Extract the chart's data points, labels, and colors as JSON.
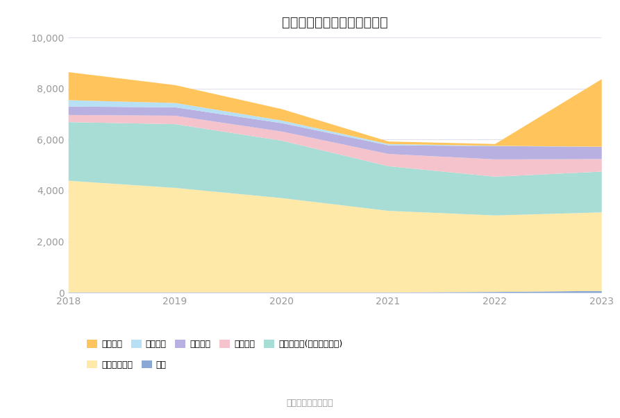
{
  "title": "历年主要负债堆积图（万元）",
  "source": "数据来源：恒生聚源",
  "years": [
    2018,
    2019,
    2020,
    2021,
    2022,
    2023
  ],
  "series": [
    {
      "name": "其它",
      "color": "#8BA7D4",
      "values": [
        20,
        20,
        20,
        20,
        40,
        80
      ]
    },
    {
      "name": "长期递延收益",
      "color": "#FFE9A8",
      "values": [
        4380,
        4100,
        3700,
        3200,
        3000,
        3080
      ]
    },
    {
      "name": "其他应付款(含利息和股利)",
      "color": "#A8DDD6",
      "values": [
        2300,
        2500,
        2250,
        1750,
        1520,
        1600
      ]
    },
    {
      "name": "应交税费",
      "color": "#F5C3CB",
      "values": [
        280,
        330,
        360,
        480,
        680,
        490
      ]
    },
    {
      "name": "合同负债",
      "color": "#B8B0E0",
      "values": [
        330,
        330,
        330,
        340,
        520,
        480
      ]
    },
    {
      "name": "预收款项",
      "color": "#B8E0F5",
      "values": [
        250,
        170,
        100,
        50,
        10,
        5
      ]
    },
    {
      "name": "应付账款",
      "color": "#FFC55C",
      "values": [
        1100,
        700,
        450,
        100,
        70,
        2650
      ]
    }
  ],
  "ylim": [
    0,
    10000
  ],
  "yticks": [
    0,
    2000,
    4000,
    6000,
    8000,
    10000
  ],
  "background_color": "#ffffff",
  "grid_color": "#e0e0ea",
  "title_fontsize": 14,
  "tick_fontsize": 10,
  "legend_fontsize": 9
}
